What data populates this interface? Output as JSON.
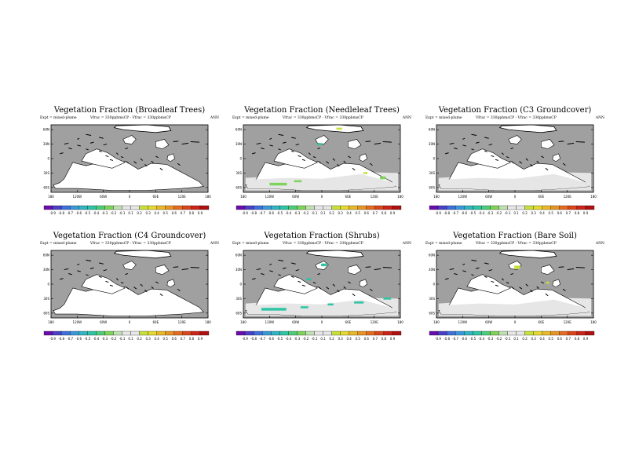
{
  "figure": {
    "panels": [
      {
        "title": "Vegetation Fraction (Broadleaf Trees)",
        "left_text": "Expt = mixed-plume",
        "center_text": "Vfrac = 330ppbmsCP - Vfrac = 330ppbmsCP",
        "right_text": "ANN",
        "field": "broadleaf"
      },
      {
        "title": "Vegetation Fraction (Needleleaf Trees)",
        "left_text": "Expt = mixed-plume",
        "center_text": "Vfrac = 330ppbmsCP - Vfrac = 330ppbmsCP",
        "right_text": "ANN",
        "field": "needleleaf"
      },
      {
        "title": "Vegetation Fraction (C3 Groundcover)",
        "left_text": "Expt = mixed-plume",
        "center_text": "Vfrac = 330ppbmsCP - Vfrac = 330ppbmsCP",
        "right_text": "ANN",
        "field": "c3"
      },
      {
        "title": "Vegetation Fraction (C4 Groundcover)",
        "left_text": "Expt = mixed-plume",
        "center_text": "Vfrac = 330ppbmsCP - Vfrac = 330ppbmsCP",
        "right_text": "ANN",
        "field": "c4"
      },
      {
        "title": "Vegetation Fraction (Shrubs)",
        "left_text": "Expt = mixed-plume",
        "center_text": "Vfrac = 330ppbmsCP - Vfrac = 330ppbmsCP",
        "right_text": "ANN",
        "field": "shrubs"
      },
      {
        "title": "Vegetation Fraction (Bare Soil)",
        "left_text": "Expt = mixed-plume",
        "center_text": "Vfrac = 330ppbmsCP - Vfrac = 330ppbmsCP",
        "right_text": "ANN",
        "field": "baresoil"
      }
    ]
  },
  "chart_data": {
    "type": "heatmap",
    "colorbar": {
      "levels": [
        "-0.9",
        "-0.8",
        "-0.7",
        "-0.6",
        "-0.5",
        "-0.4",
        "-0.3",
        "-0.2",
        "-0.1",
        "0.1",
        "0.2",
        "0.3",
        "0.4",
        "0.5",
        "0.6",
        "0.7",
        "0.8",
        "0.9"
      ],
      "colors": [
        "#6a0dad",
        "#4b3fc8",
        "#3f6fd8",
        "#3b98d8",
        "#32b4c4",
        "#2ec4a4",
        "#4ccc7c",
        "#7ed45a",
        "#bfe0b0",
        "#e6e6e6",
        "#e6e6e6",
        "#c8e03c",
        "#e6d832",
        "#e8b828",
        "#e89424",
        "#e46c20",
        "#dc441c",
        "#cc2418",
        "#b01010"
      ]
    },
    "y_ticks": [
      "60N",
      "30N",
      "0",
      "30S",
      "60S"
    ],
    "y_values": [
      60,
      30,
      0,
      -30,
      -60
    ],
    "x_ticks": [
      "180",
      "120W",
      "60W",
      "0",
      "60E",
      "120E",
      "180"
    ],
    "x_values": [
      -180,
      -120,
      -60,
      0,
      60,
      120,
      180
    ],
    "xlim": [
      -180,
      180
    ],
    "ylim": [
      -70,
      70
    ],
    "ocean_color": "#a0a0a0",
    "land_color": "#ffffff",
    "zero_band_color": "#e6e6e6",
    "anomalies": {
      "broadleaf": [],
      "needleleaf": [
        {
          "lon": -100,
          "lat": -53,
          "w": 18,
          "h": 4,
          "color": "#7ed45a"
        },
        {
          "lon": -55,
          "lat": -47,
          "w": 8,
          "h": 3,
          "color": "#7ed45a"
        },
        {
          "lon": 140,
          "lat": -40,
          "w": 6,
          "h": 4,
          "color": "#7ed45a"
        },
        {
          "lon": 100,
          "lat": -30,
          "w": 4,
          "h": 3,
          "color": "#c8e03c"
        },
        {
          "lon": 40,
          "lat": 62,
          "w": 6,
          "h": 3,
          "color": "#c8e03c"
        },
        {
          "lon": -5,
          "lat": 30,
          "w": 5,
          "h": 3,
          "color": "#2ec4a4"
        }
      ],
      "c3": [],
      "c4": [],
      "shrubs": [
        {
          "lon": -110,
          "lat": -52,
          "w": 26,
          "h": 4,
          "color": "#2ec4a4"
        },
        {
          "lon": -40,
          "lat": -48,
          "w": 8,
          "h": 3,
          "color": "#2ec4a4"
        },
        {
          "lon": 20,
          "lat": -42,
          "w": 6,
          "h": 3,
          "color": "#2ec4a4"
        },
        {
          "lon": 85,
          "lat": -38,
          "w": 10,
          "h": 3,
          "color": "#2ec4a4"
        },
        {
          "lon": 150,
          "lat": -30,
          "w": 8,
          "h": 3,
          "color": "#2ec4a4"
        },
        {
          "lon": -30,
          "lat": 10,
          "w": 5,
          "h": 3,
          "color": "#2ec4a4"
        },
        {
          "lon": 5,
          "lat": 40,
          "w": 6,
          "h": 4,
          "color": "#2ec4a4"
        }
      ],
      "baresoil": [
        {
          "lon": 5,
          "lat": 35,
          "w": 6,
          "h": 5,
          "color": "#c8e03c"
        },
        {
          "lon": 75,
          "lat": 3,
          "w": 3,
          "h": 3,
          "color": "#c8e03c"
        }
      ]
    },
    "zero_band": {
      "broadleaf": false,
      "needleleaf": true,
      "c3": true,
      "c4": false,
      "shrubs": true,
      "baresoil": true
    }
  }
}
